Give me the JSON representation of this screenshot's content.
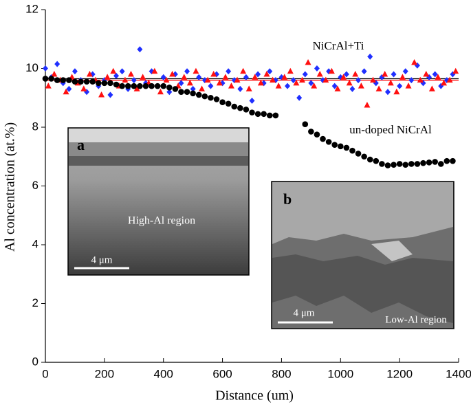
{
  "chart_data": {
    "type": "scatter",
    "x_label": "Distance (um)",
    "y_label": "Al concentration (at.%)",
    "xlim": [
      0,
      1400
    ],
    "xticks": [
      0,
      200,
      400,
      600,
      800,
      1000,
      1200,
      1400
    ],
    "ylim": [
      0,
      12
    ],
    "yticks": [
      0,
      2,
      4,
      6,
      8,
      10,
      12
    ],
    "annotations": [
      {
        "text": "NiCrAl+Ti"
      },
      {
        "text": "un-doped NiCrAl"
      }
    ],
    "reference_lines": [
      {
        "value": 9.65,
        "color": "#000000"
      },
      {
        "value": 9.6,
        "color": "#ff0000"
      }
    ],
    "series": [
      {
        "color": "#000000",
        "marker": "circle",
        "x": [
          0,
          20,
          40,
          60,
          80,
          100,
          120,
          140,
          160,
          180,
          200,
          220,
          240,
          260,
          280,
          300,
          320,
          340,
          360,
          380,
          400,
          420,
          440,
          460,
          480,
          500,
          520,
          540,
          560,
          580,
          600,
          620,
          640,
          660,
          680,
          700,
          720,
          740,
          760,
          780,
          880,
          900,
          920,
          940,
          960,
          980,
          1000,
          1020,
          1040,
          1060,
          1080,
          1100,
          1120,
          1140,
          1160,
          1180,
          1200,
          1220,
          1240,
          1260,
          1280,
          1300,
          1320,
          1340,
          1360,
          1380
        ],
        "values": [
          9.65,
          9.65,
          9.6,
          9.6,
          9.6,
          9.55,
          9.55,
          9.55,
          9.55,
          9.5,
          9.5,
          9.5,
          9.45,
          9.4,
          9.4,
          9.4,
          9.4,
          9.4,
          9.4,
          9.4,
          9.4,
          9.35,
          9.3,
          9.2,
          9.2,
          9.15,
          9.1,
          9.05,
          9.0,
          8.95,
          8.85,
          8.8,
          8.7,
          8.65,
          8.6,
          8.5,
          8.45,
          8.45,
          8.4,
          8.4,
          8.1,
          7.85,
          7.75,
          7.6,
          7.5,
          7.4,
          7.35,
          7.3,
          7.2,
          7.1,
          7.0,
          6.9,
          6.85,
          6.75,
          6.7,
          6.72,
          6.75,
          6.72,
          6.75,
          6.75,
          6.78,
          6.8,
          6.82,
          6.75,
          6.85,
          6.85
        ]
      },
      {
        "color": "#1f2fff",
        "marker": "diamond",
        "x": [
          0,
          20,
          40,
          60,
          80,
          100,
          120,
          140,
          160,
          180,
          200,
          220,
          240,
          260,
          280,
          300,
          320,
          340,
          360,
          380,
          400,
          420,
          440,
          460,
          480,
          500,
          520,
          540,
          560,
          580,
          600,
          620,
          640,
          660,
          680,
          700,
          720,
          740,
          760,
          780,
          800,
          820,
          840,
          860,
          880,
          900,
          920,
          940,
          960,
          980,
          1000,
          1020,
          1040,
          1060,
          1080,
          1100,
          1120,
          1140,
          1160,
          1180,
          1200,
          1220,
          1240,
          1260,
          1280,
          1300,
          1320,
          1340,
          1360,
          1380
        ],
        "values": [
          10.0,
          9.7,
          10.15,
          9.5,
          9.3,
          9.9,
          9.6,
          9.2,
          9.8,
          9.4,
          9.6,
          9.1,
          9.75,
          9.9,
          9.3,
          9.6,
          10.65,
          9.5,
          9.9,
          9.4,
          9.7,
          9.2,
          9.8,
          9.5,
          9.9,
          9.3,
          9.7,
          9.6,
          9.4,
          9.8,
          9.5,
          9.9,
          9.6,
          9.3,
          9.7,
          8.9,
          9.8,
          9.5,
          9.9,
          9.6,
          9.7,
          9.4,
          9.6,
          9.0,
          9.8,
          9.5,
          10.0,
          9.6,
          9.9,
          9.4,
          9.7,
          9.8,
          9.3,
          9.6,
          9.9,
          10.4,
          9.5,
          9.7,
          9.2,
          9.8,
          9.4,
          9.9,
          9.6,
          10.1,
          9.5,
          9.7,
          9.8,
          9.4,
          9.6,
          9.8
        ]
      },
      {
        "color": "#ff1010",
        "marker": "triangle",
        "x": [
          10,
          30,
          50,
          70,
          90,
          110,
          130,
          150,
          170,
          190,
          210,
          230,
          250,
          270,
          290,
          310,
          330,
          350,
          370,
          390,
          410,
          430,
          450,
          470,
          490,
          510,
          530,
          550,
          570,
          590,
          610,
          630,
          650,
          670,
          690,
          710,
          730,
          750,
          770,
          790,
          810,
          830,
          850,
          870,
          890,
          910,
          930,
          950,
          970,
          990,
          1010,
          1030,
          1050,
          1070,
          1090,
          1110,
          1130,
          1150,
          1170,
          1190,
          1210,
          1230,
          1250,
          1270,
          1290,
          1310,
          1330,
          1350,
          1370,
          1390
        ],
        "values": [
          9.4,
          9.8,
          9.6,
          9.2,
          9.7,
          9.5,
          9.3,
          9.8,
          9.6,
          9.1,
          9.7,
          9.9,
          9.4,
          9.6,
          9.8,
          9.3,
          9.7,
          9.5,
          9.9,
          9.2,
          9.6,
          9.8,
          9.4,
          9.7,
          9.5,
          9.9,
          9.3,
          9.6,
          9.8,
          9.5,
          9.7,
          9.4,
          9.6,
          9.9,
          9.3,
          9.7,
          9.5,
          9.8,
          9.6,
          9.4,
          9.7,
          9.9,
          9.5,
          9.6,
          10.2,
          9.4,
          9.8,
          9.6,
          9.9,
          9.3,
          9.7,
          9.5,
          9.8,
          9.4,
          8.75,
          9.6,
          9.3,
          9.8,
          9.5,
          9.2,
          9.7,
          9.4,
          10.2,
          9.6,
          9.8,
          9.3,
          9.7,
          9.5,
          9.6,
          9.9
        ]
      }
    ]
  },
  "insets": [
    {
      "label": "a",
      "caption": "High-Al region",
      "scale_bar": "4 μm"
    },
    {
      "label": "b",
      "caption": "Low-Al region",
      "scale_bar": "4 μm"
    }
  ]
}
